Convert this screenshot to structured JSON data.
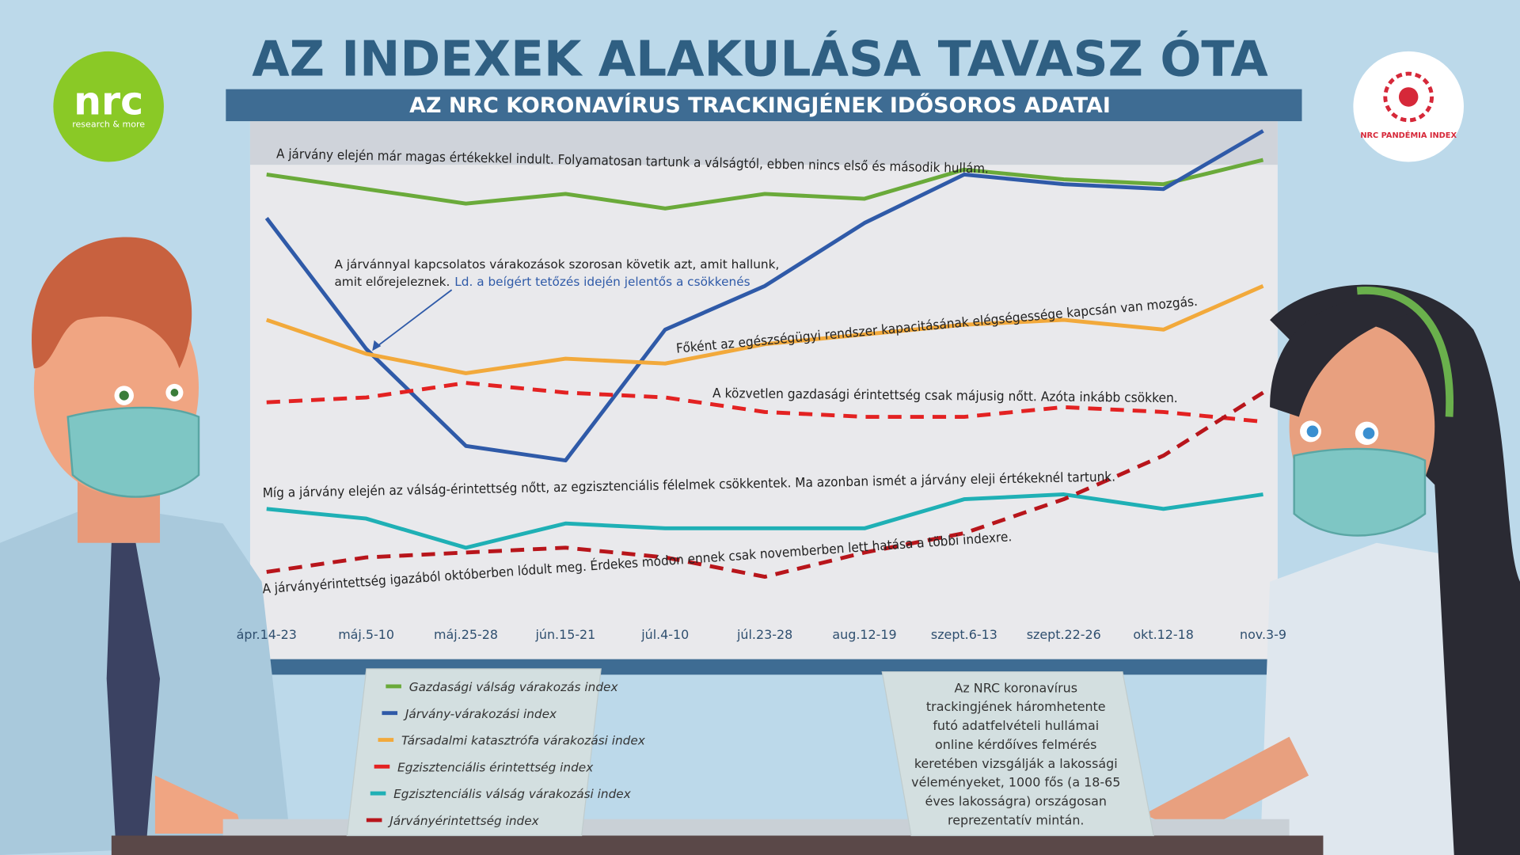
{
  "header": {
    "title": "AZ INDEXEK ALAKULÁSA TAVASZ ÓTA",
    "subtitle": "AZ NRC KORONAVÍRUS TRACKINGJÉNEK IDŐSOROS ADATAI"
  },
  "logos": {
    "left": {
      "name": "nrc",
      "tagline": "research & more"
    },
    "right": {
      "text": "NRC PANDÉMIA INDEX"
    }
  },
  "chart_data": {
    "type": "line",
    "categories": [
      "ápr.14-23",
      "máj.5-10",
      "máj.25-28",
      "jún.15-21",
      "júl.4-10",
      "júl.23-28",
      "aug.12-19",
      "szept.6-13",
      "szept.22-26",
      "okt.12-18",
      "nov.3-9"
    ],
    "ylim": [
      0,
      102
    ],
    "series": [
      {
        "name": "Gazdasági válság várakozás index",
        "color": "#6aaa3a",
        "dashed": false,
        "values": [
          92,
          89,
          86,
          88,
          85,
          88,
          87,
          93,
          91,
          90,
          95
        ]
      },
      {
        "name": "Járvány-várakozási index",
        "color": "#2f5aa8",
        "dashed": false,
        "values": [
          83,
          56,
          36,
          33,
          60,
          69,
          82,
          92,
          90,
          89,
          101
        ]
      },
      {
        "name": "Társadalmi katasztrófa várakozási index",
        "color": "#f2a93b",
        "dashed": false,
        "values": [
          62,
          55,
          51,
          54,
          53,
          57,
          59,
          61,
          62,
          60,
          69
        ]
      },
      {
        "name": "Egzisztenciális érintettség index",
        "color": "#e32222",
        "dashed": true,
        "values": [
          45,
          46,
          49,
          47,
          46,
          43,
          42,
          42,
          44,
          43,
          41
        ]
      },
      {
        "name": "Egzisztenciális válság várakozási index",
        "color": "#1fb0b5",
        "dashed": false,
        "values": [
          23,
          21,
          15,
          20,
          19,
          19,
          19,
          25,
          26,
          23,
          26
        ]
      },
      {
        "name": "Járványérintettség index",
        "color": "#b8151b",
        "dashed": true,
        "values": [
          10,
          13,
          14,
          15,
          13,
          9,
          14,
          18,
          25,
          34,
          47
        ]
      }
    ],
    "annotations": [
      {
        "text": "A járvány elején már magas értékekkel indult. Folyamatosan tartunk a válságtól, ebben nincs első és második hullám."
      },
      {
        "lines": [
          "A járvánnyal kapcsolatos várakozások szorosan követik azt, amit hallunk,",
          "amit előrejeleznek."
        ]
      },
      {
        "text": "Ld. a beígért tetőzés idején jelentős a csökkenés",
        "color": "#2f5aa8"
      },
      {
        "text": "Főként az egészségügyi rendszer kapacitásának elégségessége kapcsán van mozgás."
      },
      {
        "text": "A közvetlen gazdasági érintettség csak májusig nőtt. Azóta inkább csökken."
      },
      {
        "text": "Míg a járvány elején az válság-érintettség nőtt, az egzisztenciális félelmek csökkentek. Ma azonban ismét a járvány eleji értékeknél tartunk."
      },
      {
        "text": "A járványérintettség igazából októberben lódult meg. Érdekes módon ennek csak novemberben lett hatása a többi indexre."
      }
    ]
  },
  "note": {
    "lines": [
      "Az NRC koronavírus",
      "trackingjének háromhetente",
      "futó adatfelvételi hullámai",
      "online kérdőíves felmérés",
      "keretében vizsgálják a lakossági",
      "véleményeket, 1000 fős (a 18-65",
      "éves lakosságra) országosan",
      "reprezentatív mintán."
    ]
  }
}
